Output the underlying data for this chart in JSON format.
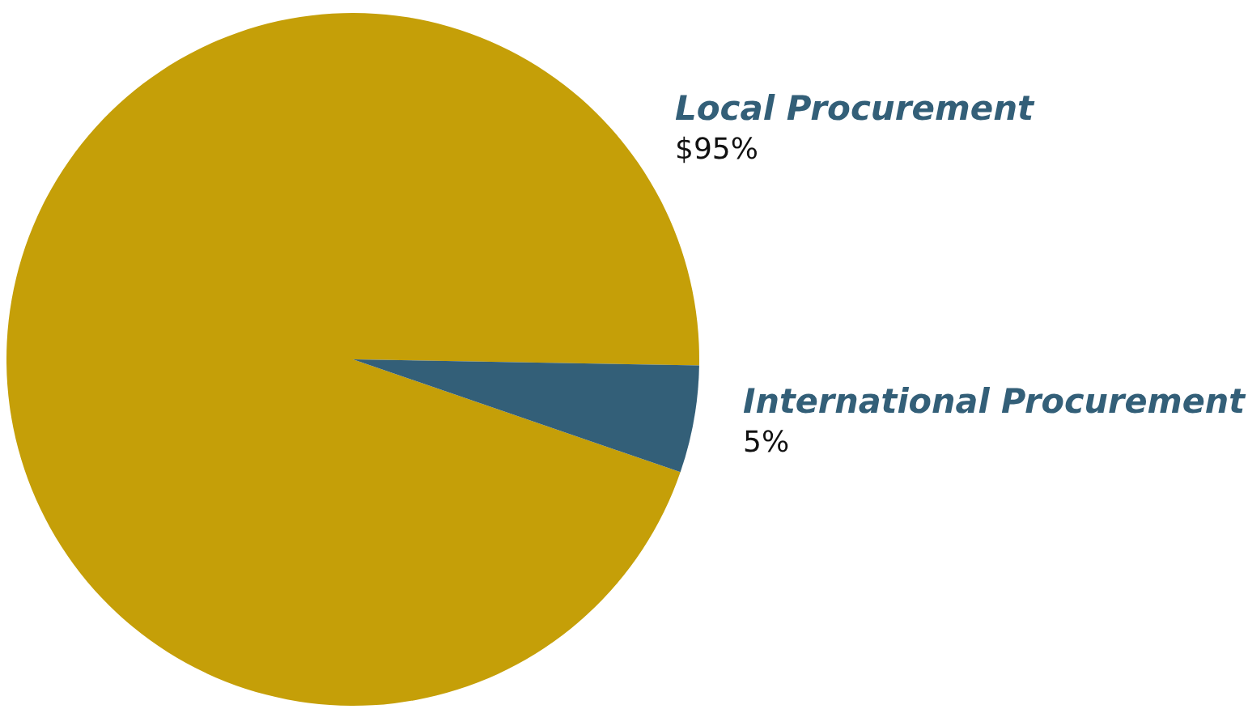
{
  "chart_data": {
    "type": "pie",
    "categories": [
      "Local Procurement",
      "International Procurement"
    ],
    "values": [
      95,
      5
    ],
    "colors": [
      "#c59f08",
      "#335f78"
    ],
    "value_labels": [
      "$95%",
      "5%"
    ],
    "legend": false
  }
}
